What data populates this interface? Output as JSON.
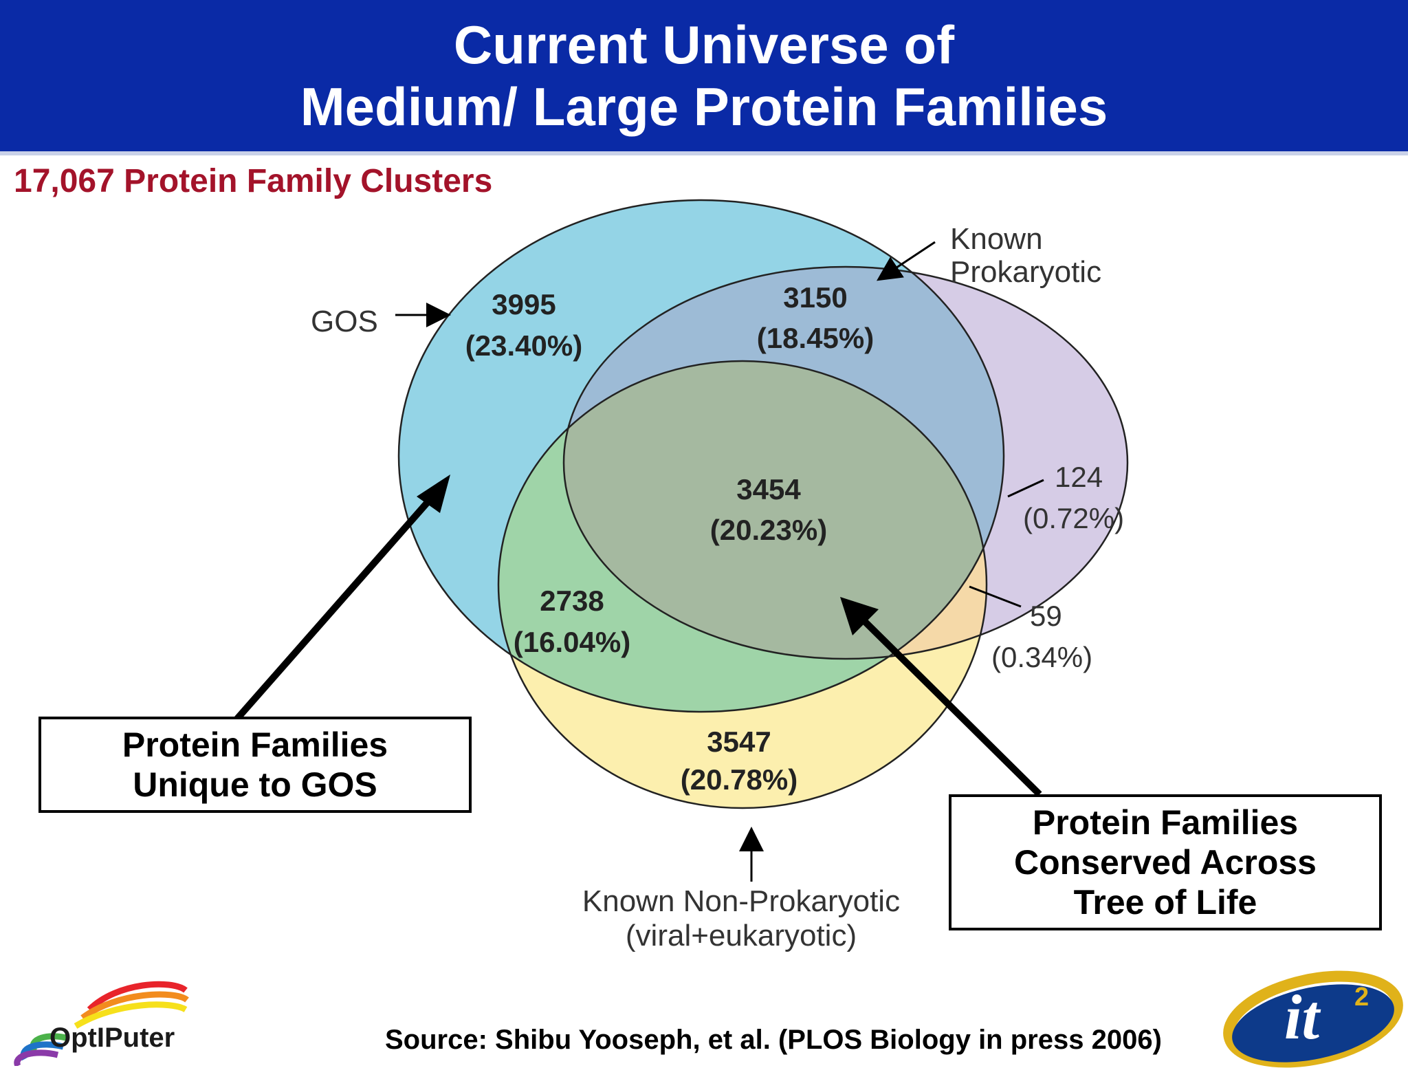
{
  "title": {
    "line1": "Current Universe of",
    "line2": "Medium/ Large Protein Families"
  },
  "subtitle": "17,067 Protein Family Clusters",
  "sets": {
    "gos": "GOS",
    "known_prok": {
      "line1": "Known",
      "line2": "Prokaryotic"
    },
    "known_nonprok": {
      "line1": "Known Non-Prokaryotic",
      "line2": "(viral+eukaryotic)"
    }
  },
  "regions": {
    "gos_only": {
      "count": "3995",
      "pct": "(23.40%)"
    },
    "gos_prok": {
      "count": "3150",
      "pct": "(18.45%)"
    },
    "all_three": {
      "count": "3454",
      "pct": "(20.23%)"
    },
    "prok_only": {
      "count": "124",
      "pct": "(0.72%)"
    },
    "gos_nonprok": {
      "count": "2738",
      "pct": "(16.04%)"
    },
    "prok_nonprok": {
      "count": "59",
      "pct": "(0.34%)"
    },
    "nonprok_only": {
      "count": "3547",
      "pct": "(20.78%)"
    }
  },
  "callouts": {
    "unique": {
      "line1": "Protein Families",
      "line2": "Unique to GOS"
    },
    "conserved": {
      "line1": "Protein Families",
      "line2": "Conserved Across",
      "line3": "Tree of Life"
    }
  },
  "source": "Source: Shibu Yooseph, et al. (PLOS Biology in press 2006)",
  "logos": {
    "optiputer": "OptIPuter",
    "it2": "it"
  },
  "colors": {
    "title_bar": "#0a2aa6",
    "subtitle": "#a3132a",
    "gos": "#8fd3e8",
    "prokaryotic": "#c8b9e0",
    "non_prokaryotic": "#fbeea8"
  }
}
